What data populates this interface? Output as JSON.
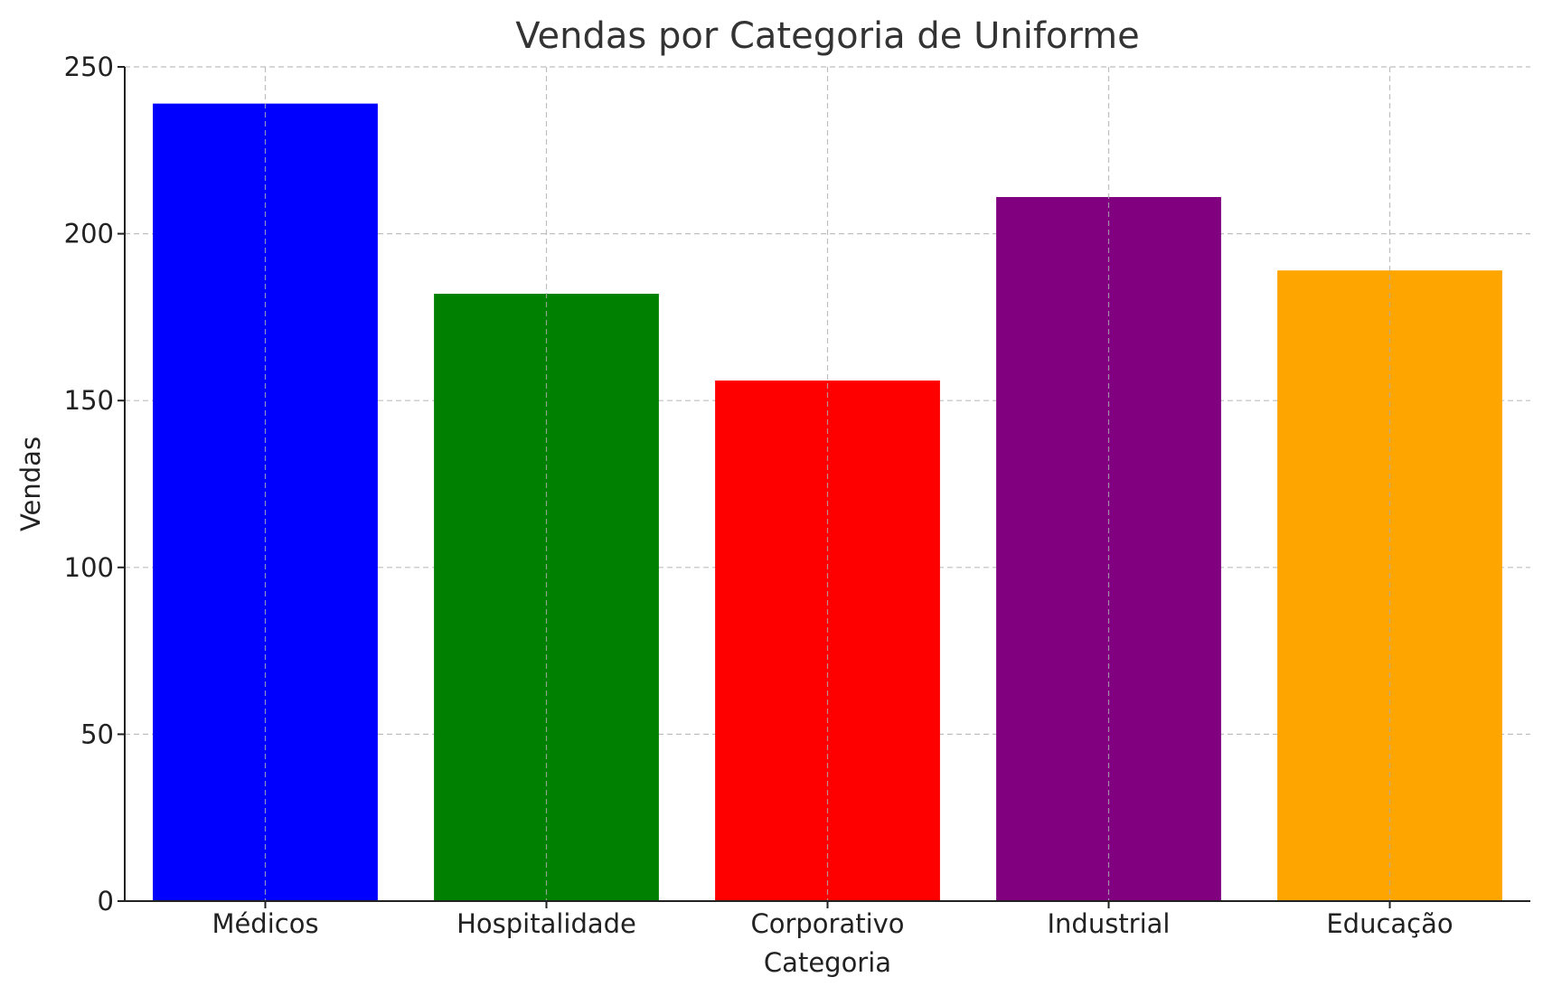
{
  "chart_data": {
    "type": "bar",
    "title": "Vendas por Categoria de Uniforme",
    "xlabel": "Categoria",
    "ylabel": "Vendas",
    "categories": [
      "Médicos",
      "Hospitalidade",
      "Corporativo",
      "Industrial",
      "Educação"
    ],
    "values": [
      239,
      182,
      156,
      211,
      189
    ],
    "colors": [
      "#0000ff",
      "#008000",
      "#ff0000",
      "#800080",
      "#ffa500"
    ],
    "ylim": [
      0,
      250
    ],
    "yticks": [
      0,
      50,
      100,
      150,
      200,
      250
    ],
    "grid": true,
    "legend": false
  }
}
